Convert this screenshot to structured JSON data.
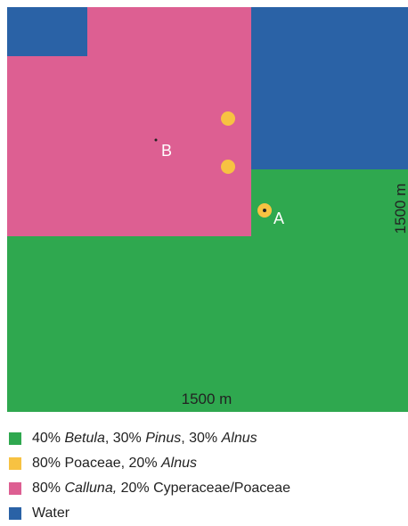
{
  "map": {
    "labels": {
      "a": "A",
      "b": "B",
      "width": "1500 m",
      "height": "1500 m"
    },
    "legend": [
      {
        "color": "#2fa84f",
        "parts": [
          {
            "text": "40% "
          },
          {
            "text": "Betula",
            "italic": true
          },
          {
            "text": ", 30% "
          },
          {
            "text": "Pinus",
            "italic": true
          },
          {
            "text": ", 30% "
          },
          {
            "text": "Alnus",
            "italic": true
          }
        ]
      },
      {
        "color": "#f7c242",
        "parts": [
          {
            "text": "80% Poaceae, 20% "
          },
          {
            "text": "Alnus",
            "italic": true
          }
        ]
      },
      {
        "color": "#dd5f92",
        "parts": [
          {
            "text": "80% "
          },
          {
            "text": "Calluna,",
            "italic": true
          },
          {
            "text": " 20% Cyperaceae/Poaceae"
          }
        ]
      },
      {
        "color": "#2a62a6",
        "parts": [
          {
            "text": "Water"
          }
        ]
      }
    ]
  }
}
